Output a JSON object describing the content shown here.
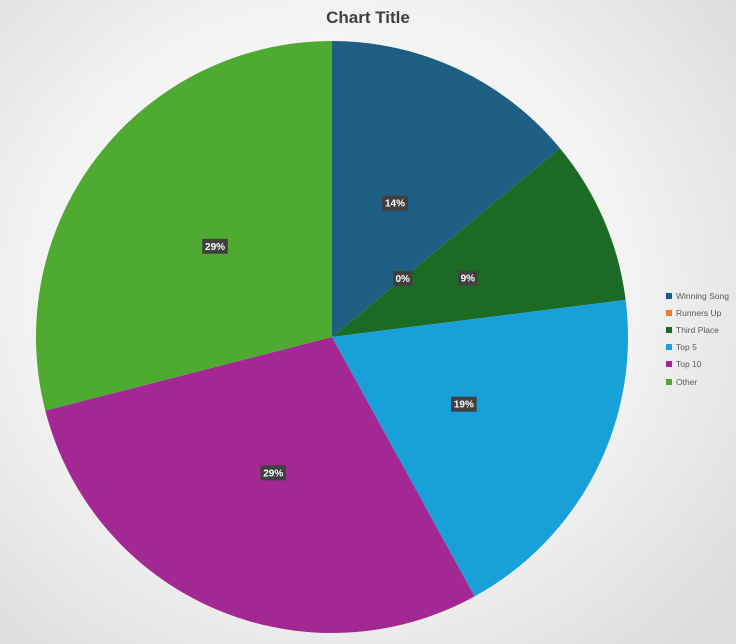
{
  "chart_data": {
    "type": "pie",
    "title": "Chart Title",
    "categories": [
      "Winning Song",
      "Runners Up",
      "Third Place",
      "Top 5",
      "Top 10",
      "Other"
    ],
    "values": [
      14,
      0,
      9,
      19,
      29,
      29
    ],
    "value_labels": [
      "14%",
      "0%",
      "9%",
      "19%",
      "29%",
      "29%"
    ],
    "colors": [
      "#1d5e82",
      "#e97c30",
      "#1c6b24",
      "#17a1d8",
      "#a32894",
      "#4faa31"
    ],
    "legend_position": "right",
    "start_angle_deg": 0,
    "direction": "clockwise"
  }
}
